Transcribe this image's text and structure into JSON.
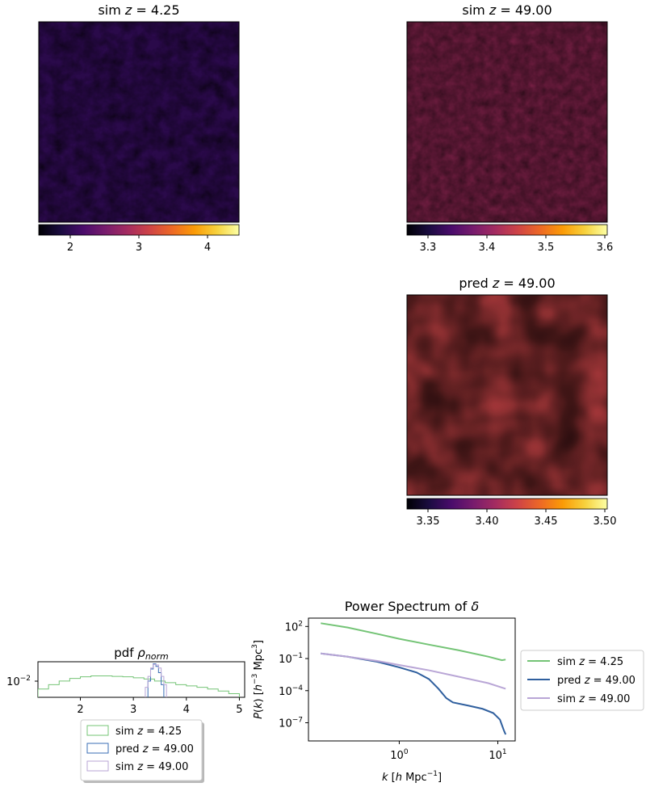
{
  "panels": {
    "sim_low": {
      "title_prefix": "sim ",
      "title_var": "z",
      "title_value": " = 4.25",
      "colorbar_ticks": [
        "2",
        "3",
        "4"
      ]
    },
    "sim_high": {
      "title_prefix": "sim ",
      "title_var": "z",
      "title_value": " = 49.00",
      "colorbar_ticks": [
        "3.3",
        "3.4",
        "3.5",
        "3.6"
      ]
    },
    "pred_high": {
      "title_prefix": "pred ",
      "title_var": "z",
      "title_value": " = 49.00",
      "colorbar_ticks": [
        "3.35",
        "3.40",
        "3.45",
        "3.50"
      ]
    }
  },
  "colormap": [
    "#000004",
    "#1b0c41",
    "#4a0c6b",
    "#781c6d",
    "#a52c60",
    "#cf4446",
    "#ed6925",
    "#fb9b06",
    "#f7d13d",
    "#fcffa4"
  ],
  "chart_data": [
    {
      "type": "area",
      "title_prefix": "pdf ",
      "title_symbol": "ρ",
      "title_sub": "norm",
      "xlim": [
        1.2,
        5.1
      ],
      "x_ticks": [
        "2",
        "3",
        "4",
        "5"
      ],
      "y_tick_base": "10",
      "y_tick_exp": "−2",
      "y_scale": "log",
      "series": [
        {
          "name": "sim z = 4.25",
          "color": "#74c476",
          "x": [
            1.3,
            1.5,
            1.7,
            1.9,
            2.1,
            2.3,
            2.5,
            2.7,
            2.9,
            3.1,
            3.3,
            3.5,
            3.7,
            3.9,
            4.1,
            4.3,
            4.5,
            4.7,
            4.9
          ],
          "values": [
            0.005,
            0.008,
            0.012,
            0.016,
            0.019,
            0.021,
            0.021,
            0.02,
            0.019,
            0.017,
            0.015,
            0.012,
            0.01,
            0.008,
            0.007,
            0.006,
            0.005,
            0.004,
            0.003
          ]
        },
        {
          "name": "pred z = 49.00",
          "color": "#3a6eb5",
          "x": [
            3.3,
            3.35,
            3.4,
            3.45,
            3.5,
            3.55
          ],
          "values": [
            0.012,
            0.045,
            0.08,
            0.06,
            0.03,
            0.008
          ]
        },
        {
          "name": "sim z = 49.00",
          "color": "#b9a6d6",
          "x": [
            3.25,
            3.3,
            3.35,
            3.4,
            3.45,
            3.5,
            3.55,
            3.6
          ],
          "values": [
            0.006,
            0.02,
            0.05,
            0.075,
            0.07,
            0.05,
            0.02,
            0.008
          ]
        }
      ],
      "legend": [
        {
          "prefix": "sim ",
          "var": "z",
          "value": " = 4.25",
          "color": "#74c476"
        },
        {
          "prefix": "pred ",
          "var": "z",
          "value": " = 49.00",
          "color": "#3a6eb5"
        },
        {
          "prefix": "sim ",
          "var": "z",
          "value": " = 49.00",
          "color": "#b9a6d6"
        }
      ]
    },
    {
      "type": "line",
      "title_prefix": "Power Spectrum of ",
      "title_symbol": "δ",
      "x_scale": "log",
      "y_scale": "log",
      "xlim": [
        0.12,
        15
      ],
      "ylim": [
        2e-09,
        600
      ],
      "xlabel": {
        "prefix": "k [h Mpc",
        "exp": "−1",
        "suffix": "]"
      },
      "ylabel": {
        "prefix": "P(k) [h",
        "exp1": "−3",
        "mid": " Mpc",
        "exp2": "3",
        "suffix": "]"
      },
      "x_ticks": [
        {
          "value": 1,
          "base": "10",
          "exp": "0"
        },
        {
          "value": 10,
          "base": "10",
          "exp": "1"
        }
      ],
      "y_ticks": [
        {
          "value": 100,
          "base": "10",
          "exp": "2"
        },
        {
          "value": 0.1,
          "base": "10",
          "exp": "−1"
        },
        {
          "value": 0.0001,
          "base": "10",
          "exp": "−4"
        },
        {
          "value": 1e-07,
          "base": "10",
          "exp": "−7"
        }
      ],
      "series": [
        {
          "name": "sim z = 4.25",
          "color": "#74c476",
          "x": [
            0.16,
            0.3,
            0.6,
            1.0,
            2.0,
            4.0,
            8.0,
            11.0,
            12.0
          ],
          "values": [
            200,
            80,
            20,
            7,
            2,
            0.6,
            0.15,
            0.07,
            0.08
          ]
        },
        {
          "name": "pred z = 49.00",
          "color": "#2f5f9e",
          "x": [
            0.16,
            0.3,
            0.6,
            1.0,
            1.5,
            2.0,
            2.5,
            3.0,
            3.5,
            5.0,
            7.0,
            9.0,
            10.5,
            11.5,
            12.0
          ],
          "values": [
            0.3,
            0.15,
            0.05,
            0.015,
            0.005,
            0.0012,
            0.00015,
            2e-05,
            8e-06,
            4e-06,
            2e-06,
            8e-07,
            2e-07,
            2e-08,
            8e-09
          ]
        },
        {
          "name": "sim z = 49.00",
          "color": "#b9a6d6",
          "x": [
            0.16,
            0.3,
            0.6,
            1.0,
            2.0,
            4.0,
            8.0,
            12.0
          ],
          "values": [
            0.3,
            0.15,
            0.06,
            0.025,
            0.008,
            0.002,
            0.0005,
            0.00015
          ]
        }
      ],
      "legend": [
        {
          "prefix": "sim ",
          "var": "z",
          "value": " = 4.25",
          "color": "#74c476"
        },
        {
          "prefix": "pred ",
          "var": "z",
          "value": " = 49.00",
          "color": "#2f5f9e"
        },
        {
          "prefix": "sim ",
          "var": "z",
          "value": " = 49.00",
          "color": "#b9a6d6"
        }
      ]
    }
  ]
}
